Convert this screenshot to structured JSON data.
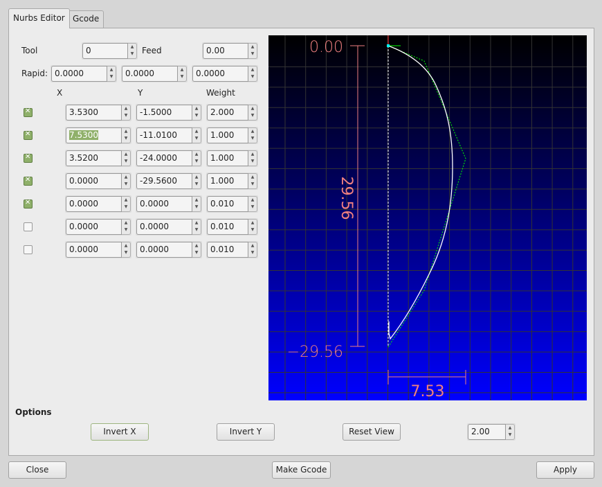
{
  "tabs": [
    {
      "label": "Nurbs Editor",
      "active": true
    },
    {
      "label": "Gcode",
      "active": false
    }
  ],
  "tool": {
    "label": "Tool",
    "value": "0"
  },
  "feed": {
    "label": "Feed",
    "value": "0.00"
  },
  "rapid": {
    "label": "Rapid:",
    "values": [
      "0.0000",
      "0.0000",
      "0.0000"
    ]
  },
  "columns": {
    "x": "X",
    "y": "Y",
    "weight": "Weight"
  },
  "points": [
    {
      "enabled": true,
      "x": "3.5300",
      "y": "-1.5000",
      "w": "2.000"
    },
    {
      "enabled": true,
      "x": "7.5300",
      "y": "-11.0100",
      "w": "1.000"
    },
    {
      "enabled": true,
      "x": "3.5200",
      "y": "-24.0000",
      "w": "1.000"
    },
    {
      "enabled": true,
      "x": "0.0000",
      "y": "-29.5600",
      "w": "1.000"
    },
    {
      "enabled": true,
      "x": "0.0000",
      "y": "0.0000",
      "w": "0.010"
    },
    {
      "enabled": false,
      "x": "0.0000",
      "y": "0.0000",
      "w": "0.010"
    },
    {
      "enabled": false,
      "x": "0.0000",
      "y": "0.0000",
      "w": "0.010"
    }
  ],
  "viewport": {
    "top_label": "0.00",
    "bottom_label": "−29.56",
    "height_label": "29.56",
    "width_label": "7.53",
    "colors": {
      "dimension": "#f08080",
      "curve": "#ffffff",
      "control": "#00ff00",
      "grid": "#333333"
    }
  },
  "options": {
    "label": "Options",
    "invert_x": "Invert X",
    "invert_y": "Invert Y",
    "reset_view": "Reset View",
    "scale": "2.00"
  },
  "footer": {
    "close": "Close",
    "make_gcode": "Make Gcode",
    "apply": "Apply"
  }
}
